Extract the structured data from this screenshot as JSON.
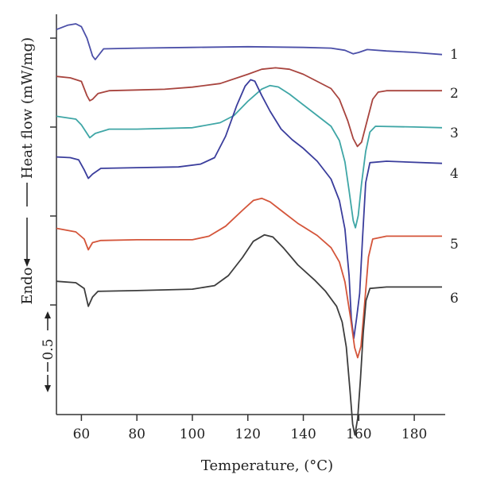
{
  "chart_data": {
    "type": "line",
    "title": "",
    "xlabel": "Temperature, (°C)",
    "ylabel": "Heat flow (mW/mg)",
    "ylabel_direction": "Endo",
    "scale_bar": "0.5",
    "xlim": [
      51,
      190
    ],
    "x_ticks": [
      "60",
      "80",
      "100",
      "120",
      "140",
      "160",
      "180"
    ],
    "grid": false,
    "legend": "none",
    "series": [
      {
        "label": "1",
        "color": "#4b4fa8",
        "points": [
          [
            51,
            0.12
          ],
          [
            55,
            0.18
          ],
          [
            58,
            0.2
          ],
          [
            60,
            0.16
          ],
          [
            62,
            0.0
          ],
          [
            64,
            -0.25
          ],
          [
            65,
            -0.3
          ],
          [
            66,
            -0.25
          ],
          [
            68,
            -0.15
          ],
          [
            80,
            -0.14
          ],
          [
            100,
            -0.13
          ],
          [
            120,
            -0.12
          ],
          [
            140,
            -0.13
          ],
          [
            150,
            -0.14
          ],
          [
            155,
            -0.17
          ],
          [
            158,
            -0.22
          ],
          [
            160,
            -0.2
          ],
          [
            163,
            -0.16
          ],
          [
            170,
            -0.18
          ],
          [
            180,
            -0.2
          ],
          [
            190,
            -0.23
          ]
        ]
      },
      {
        "label": "2",
        "color": "#a8443e",
        "points": [
          [
            51,
            0.02
          ],
          [
            56,
            0.0
          ],
          [
            60,
            -0.05
          ],
          [
            62,
            -0.25
          ],
          [
            63,
            -0.32
          ],
          [
            64,
            -0.3
          ],
          [
            66,
            -0.22
          ],
          [
            70,
            -0.18
          ],
          [
            80,
            -0.17
          ],
          [
            90,
            -0.16
          ],
          [
            100,
            -0.13
          ],
          [
            110,
            -0.08
          ],
          [
            120,
            0.05
          ],
          [
            125,
            0.12
          ],
          [
            130,
            0.14
          ],
          [
            135,
            0.12
          ],
          [
            140,
            0.05
          ],
          [
            145,
            -0.05
          ],
          [
            150,
            -0.15
          ],
          [
            153,
            -0.3
          ],
          [
            156,
            -0.6
          ],
          [
            158,
            -0.85
          ],
          [
            159.5,
            -0.96
          ],
          [
            161,
            -0.9
          ],
          [
            163,
            -0.6
          ],
          [
            165,
            -0.3
          ],
          [
            167,
            -0.2
          ],
          [
            170,
            -0.18
          ],
          [
            180,
            -0.18
          ],
          [
            190,
            -0.18
          ]
        ]
      },
      {
        "label": "3",
        "color": "#3fa6a6",
        "points": [
          [
            51,
            0.04
          ],
          [
            58,
            0.0
          ],
          [
            60,
            -0.08
          ],
          [
            62,
            -0.2
          ],
          [
            63,
            -0.26
          ],
          [
            65,
            -0.2
          ],
          [
            70,
            -0.14
          ],
          [
            80,
            -0.14
          ],
          [
            100,
            -0.12
          ],
          [
            110,
            -0.05
          ],
          [
            115,
            0.05
          ],
          [
            120,
            0.25
          ],
          [
            125,
            0.42
          ],
          [
            128,
            0.47
          ],
          [
            131,
            0.45
          ],
          [
            135,
            0.35
          ],
          [
            140,
            0.2
          ],
          [
            145,
            0.05
          ],
          [
            150,
            -0.1
          ],
          [
            153,
            -0.3
          ],
          [
            155,
            -0.6
          ],
          [
            156.5,
            -1.0
          ],
          [
            158,
            -1.42
          ],
          [
            158.8,
            -1.52
          ],
          [
            159.8,
            -1.35
          ],
          [
            161,
            -0.9
          ],
          [
            162.5,
            -0.45
          ],
          [
            164,
            -0.18
          ],
          [
            166,
            -0.1
          ],
          [
            180,
            -0.11
          ],
          [
            190,
            -0.12
          ]
        ]
      },
      {
        "label": "4",
        "color": "#3a3d9c",
        "points": [
          [
            51,
            0.06
          ],
          [
            56,
            0.05
          ],
          [
            59,
            0.02
          ],
          [
            61,
            -0.12
          ],
          [
            62.5,
            -0.24
          ],
          [
            64,
            -0.18
          ],
          [
            67,
            -0.1
          ],
          [
            80,
            -0.09
          ],
          [
            95,
            -0.08
          ],
          [
            103,
            -0.04
          ],
          [
            108,
            0.05
          ],
          [
            112,
            0.35
          ],
          [
            116,
            0.78
          ],
          [
            119,
            1.05
          ],
          [
            121,
            1.14
          ],
          [
            122.5,
            1.12
          ],
          [
            125,
            0.92
          ],
          [
            128,
            0.7
          ],
          [
            132,
            0.45
          ],
          [
            136,
            0.3
          ],
          [
            140,
            0.18
          ],
          [
            145,
            0.0
          ],
          [
            150,
            -0.25
          ],
          [
            153,
            -0.55
          ],
          [
            155,
            -0.95
          ],
          [
            156.5,
            -1.6
          ],
          [
            157.3,
            -2.2
          ],
          [
            158.2,
            -2.48
          ],
          [
            159.2,
            -2.2
          ],
          [
            160.3,
            -1.85
          ],
          [
            161.3,
            -1.1
          ],
          [
            162.5,
            -0.3
          ],
          [
            164,
            -0.02
          ],
          [
            170,
            0.0
          ],
          [
            190,
            -0.03
          ]
        ]
      },
      {
        "label": "5",
        "color": "#d4553a",
        "points": [
          [
            51,
            0.05
          ],
          [
            58,
            0.0
          ],
          [
            61,
            -0.1
          ],
          [
            62.5,
            -0.25
          ],
          [
            64,
            -0.15
          ],
          [
            67,
            -0.12
          ],
          [
            80,
            -0.11
          ],
          [
            100,
            -0.11
          ],
          [
            106,
            -0.06
          ],
          [
            112,
            0.08
          ],
          [
            118,
            0.3
          ],
          [
            122,
            0.44
          ],
          [
            125,
            0.47
          ],
          [
            128,
            0.42
          ],
          [
            132,
            0.3
          ],
          [
            138,
            0.12
          ],
          [
            145,
            -0.05
          ],
          [
            150,
            -0.22
          ],
          [
            153,
            -0.42
          ],
          [
            155,
            -0.7
          ],
          [
            157,
            -1.2
          ],
          [
            158.5,
            -1.62
          ],
          [
            159.6,
            -1.76
          ],
          [
            160.8,
            -1.6
          ],
          [
            162,
            -1.05
          ],
          [
            163.5,
            -0.35
          ],
          [
            165,
            -0.1
          ],
          [
            170,
            -0.06
          ],
          [
            190,
            -0.06
          ]
        ]
      },
      {
        "label": "6",
        "color": "#3d3d3d",
        "points": [
          [
            51,
            0.02
          ],
          [
            58,
            0.0
          ],
          [
            61,
            -0.08
          ],
          [
            62.5,
            -0.33
          ],
          [
            64,
            -0.2
          ],
          [
            66,
            -0.12
          ],
          [
            80,
            -0.11
          ],
          [
            100,
            -0.09
          ],
          [
            108,
            -0.04
          ],
          [
            113,
            0.1
          ],
          [
            118,
            0.35
          ],
          [
            122,
            0.58
          ],
          [
            126,
            0.67
          ],
          [
            129,
            0.64
          ],
          [
            133,
            0.48
          ],
          [
            138,
            0.25
          ],
          [
            144,
            0.04
          ],
          [
            148,
            -0.12
          ],
          [
            152,
            -0.33
          ],
          [
            154,
            -0.55
          ],
          [
            155.5,
            -0.9
          ],
          [
            156.8,
            -1.5
          ],
          [
            157.8,
            -1.98
          ],
          [
            158.6,
            -2.13
          ],
          [
            159.6,
            -1.9
          ],
          [
            160.6,
            -1.35
          ],
          [
            161.6,
            -0.7
          ],
          [
            162.6,
            -0.25
          ],
          [
            164,
            -0.08
          ],
          [
            170,
            -0.06
          ],
          [
            190,
            -0.06
          ]
        ]
      }
    ]
  }
}
